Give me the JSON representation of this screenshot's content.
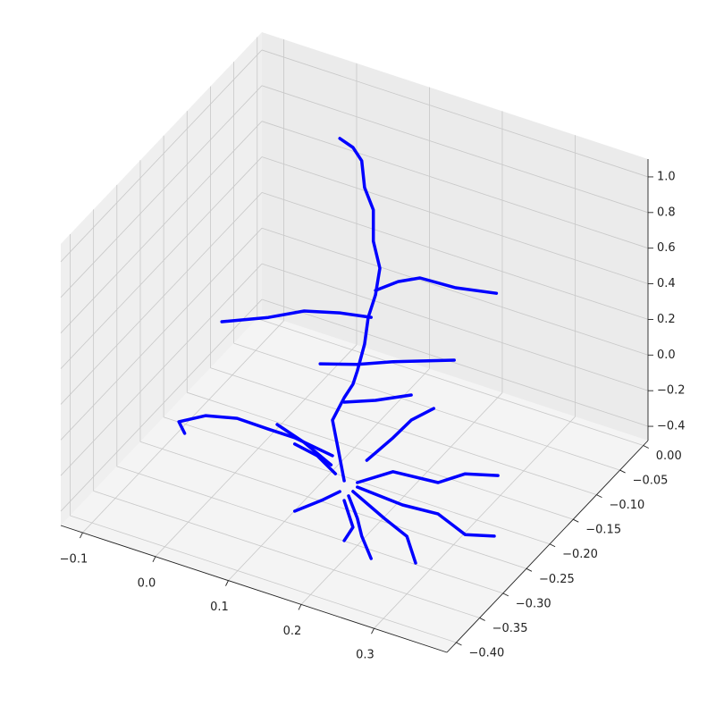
{
  "chart_data": {
    "type": "line3d",
    "color": "#0000ff",
    "grid": true,
    "xlim": [
      -0.13,
      0.4
    ],
    "ylim": [
      -0.42,
      0.01
    ],
    "zlim": [
      -0.48,
      1.1
    ],
    "xticks": [
      {
        "value": -0.1,
        "label": "−0.1"
      },
      {
        "value": 0,
        "label": "0.0"
      },
      0.1,
      0.2,
      0.3
    ],
    "yticks": [
      {
        "value": 0,
        "label": "0.00"
      },
      {
        "value": -0.05,
        "label": "−0.05"
      },
      {
        "value": -0.1,
        "label": "−0.10"
      },
      {
        "value": -0.15,
        "label": "−0.15"
      },
      {
        "value": -0.2,
        "label": "−0.20"
      },
      {
        "value": -0.25,
        "label": "−0.25"
      },
      {
        "value": -0.3,
        "label": "−0.30"
      },
      {
        "value": -0.35,
        "label": "−0.35"
      },
      {
        "value": -0.4,
        "label": "−0.40"
      }
    ],
    "zticks": [
      {
        "value": -0.4,
        "label": "−0.4"
      },
      {
        "value": -0.2,
        "label": "−0.2"
      },
      {
        "value": 0,
        "label": "0.0"
      },
      0.2,
      0.4,
      0.6,
      0.8,
      {
        "value": 1,
        "label": "1.0"
      }
    ],
    "series": [
      {
        "x": [
          0.121,
          0.112,
          0.105,
          0.121,
          0.133,
          0.139,
          0.149,
          0.154,
          0.164,
          0.17,
          0.161,
          0.161,
          0.149,
          0.145,
          0.133,
          0.115
        ],
        "y": [
          -0.205,
          -0.205,
          -0.205,
          -0.205,
          -0.205,
          -0.205,
          -0.205,
          -0.205,
          -0.205,
          -0.205,
          -0.205,
          -0.205,
          -0.205,
          -0.205,
          -0.205,
          -0.205
        ],
        "z": [
          -0.486,
          -0.307,
          -0.167,
          -0.02,
          0.072,
          0.155,
          0.319,
          0.476,
          0.615,
          0.773,
          0.912,
          1.088,
          1.197,
          1.342,
          1.401,
          1.427
        ]
      },
      {
        "x": [
          0.164,
          0.195,
          0.225,
          0.274,
          0.33
        ],
        "y": [
          -0.205,
          -0.205,
          -0.205,
          -0.205,
          -0.205
        ],
        "z": [
          0.64,
          0.731,
          0.792,
          0.803,
          0.847
        ]
      },
      {
        "x": [
          0.158,
          0.115,
          0.066,
          0.017,
          -0.047
        ],
        "y": [
          -0.205,
          -0.205,
          -0.205,
          -0.205,
          -0.205
        ],
        "z": [
          0.481,
          0.448,
          0.393,
          0.291,
          0.181
        ]
      },
      {
        "x": [
          0.088,
          0.139,
          0.188,
          0.272
        ],
        "y": [
          -0.205,
          -0.205,
          -0.205,
          -0.205
        ],
        "z": [
          0.126,
          0.191,
          0.272,
          0.394
        ]
      },
      {
        "x": [
          0.121,
          0.164,
          0.213
        ],
        "y": [
          -0.205,
          -0.205,
          -0.205
        ],
        "z": [
          -0.045,
          0.023,
          0.119
        ]
      },
      {
        "x": [
          0.105,
          0.053,
          0.017,
          -0.026,
          -0.069,
          -0.106,
          -0.098
        ],
        "y": [
          -0.205,
          -0.205,
          -0.205,
          -0.205,
          -0.205,
          -0.205,
          -0.205
        ],
        "z": [
          -0.367,
          -0.336,
          -0.336,
          -0.333,
          -0.376,
          -0.46,
          -0.514
        ]
      },
      {
        "x": [
          0.152,
          0.188,
          0.213,
          0.244
        ],
        "y": [
          -0.205,
          -0.205,
          -0.205,
          -0.205
        ],
        "z": [
          -0.33,
          -0.155,
          -0.022,
          0.085
        ]
      },
      {
        "x": [
          0.139,
          0.188,
          0.25,
          0.287,
          0.332
        ],
        "y": [
          -0.205,
          -0.205,
          -0.205,
          -0.205,
          -0.205
        ],
        "z": [
          -0.472,
          -0.345,
          -0.323,
          -0.224,
          -0.173
        ]
      },
      {
        "x": [
          0.139,
          0.201,
          0.25,
          0.287,
          0.327
        ],
        "y": [
          -0.205,
          -0.205,
          -0.205,
          -0.205,
          -0.205
        ],
        "z": [
          -0.497,
          -0.514,
          -0.499,
          -0.565,
          -0.52
        ]
      },
      {
        "x": [
          0.133,
          0.176,
          0.207,
          0.219
        ],
        "y": [
          -0.205,
          -0.205,
          -0.205,
          -0.205
        ],
        "z": [
          -0.53,
          -0.623,
          -0.682,
          -0.816
        ]
      },
      {
        "x": [
          0.127,
          0.139,
          0.145,
          0.158
        ],
        "y": [
          -0.205,
          -0.205,
          -0.205,
          -0.205
        ],
        "z": [
          -0.563,
          -0.672,
          -0.764,
          -0.873
        ]
      },
      {
        "x": [
          0.115,
          0.09,
          0.053
        ],
        "y": [
          -0.205,
          -0.205,
          -0.205
        ],
        "z": [
          -0.555,
          -0.638,
          -0.748
        ]
      },
      {
        "x": [
          0.109,
          0.084,
          0.053
        ],
        "y": [
          -0.205,
          -0.205,
          -0.205
        ],
        "z": [
          -0.463,
          -0.395,
          -0.371
        ]
      },
      {
        "x": [
          0.103,
          0.066,
          0.029
        ],
        "y": [
          -0.205,
          -0.205,
          -0.205
        ],
        "z": [
          -0.421,
          -0.345,
          -0.294
        ]
      },
      {
        "x": [
          0.121,
          0.133,
          0.121
        ],
        "y": [
          -0.205,
          -0.205,
          -0.205
        ],
        "z": [
          -0.597,
          -0.731,
          -0.822
        ]
      }
    ]
  }
}
